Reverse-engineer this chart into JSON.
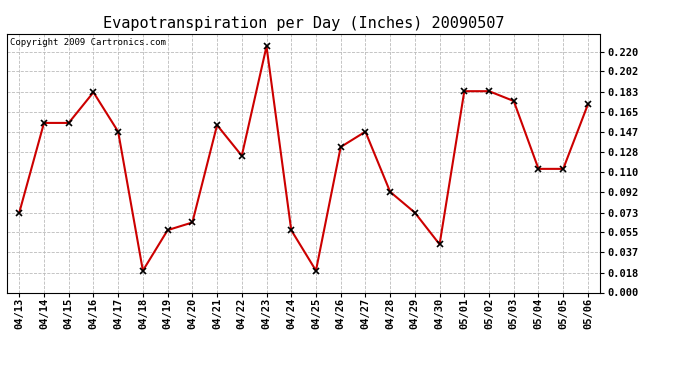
{
  "title": "Evapotranspiration per Day (Inches) 20090507",
  "copyright_text": "Copyright 2009 Cartronics.com",
  "dates": [
    "04/13",
    "04/14",
    "04/15",
    "04/16",
    "04/17",
    "04/18",
    "04/19",
    "04/20",
    "04/21",
    "04/22",
    "04/23",
    "04/24",
    "04/25",
    "04/26",
    "04/27",
    "04/28",
    "04/29",
    "04/30",
    "05/01",
    "05/02",
    "05/03",
    "05/04",
    "05/05",
    "05/06"
  ],
  "values": [
    0.073,
    0.155,
    0.155,
    0.183,
    0.147,
    0.02,
    0.057,
    0.064,
    0.153,
    0.125,
    0.225,
    0.057,
    0.02,
    0.133,
    0.147,
    0.092,
    0.073,
    0.044,
    0.184,
    0.184,
    0.175,
    0.113,
    0.113,
    0.172
  ],
  "line_color": "#cc0000",
  "marker_color": "#000000",
  "background_color": "#ffffff",
  "plot_bg_color": "#ffffff",
  "grid_color": "#bbbbbb",
  "ylim": [
    0.0,
    0.2365
  ],
  "yticks": [
    0.0,
    0.018,
    0.037,
    0.055,
    0.073,
    0.092,
    0.11,
    0.128,
    0.147,
    0.165,
    0.183,
    0.202,
    0.22
  ],
  "title_fontsize": 11,
  "tick_fontsize": 7.5,
  "copyright_fontsize": 6.5
}
